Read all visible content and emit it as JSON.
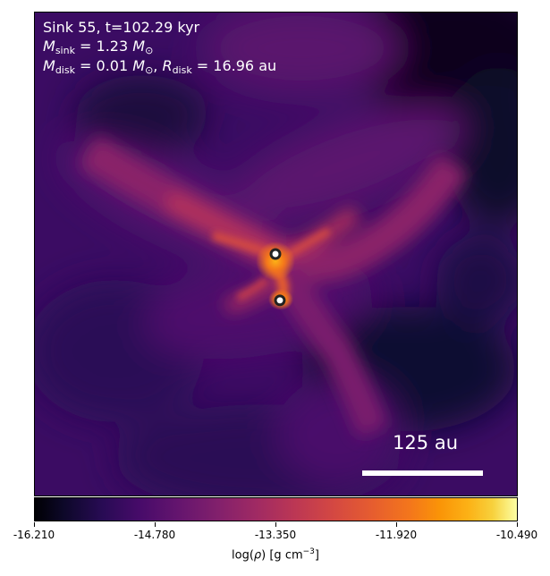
{
  "overlay": {
    "title": "Sink 55, t=102.29 kyr",
    "msink_symbol": "M",
    "msink_sub": "sink",
    "msink_value": " = 1.23 ",
    "msink_unit": "M",
    "msink_unit_sub": "⊙",
    "mdisk_symbol": "M",
    "mdisk_sub": "disk",
    "mdisk_value": " = 0.01 ",
    "mdisk_unit": "M",
    "mdisk_unit_sub": "⊙",
    "separator": ", ",
    "rdisk_symbol": "R",
    "rdisk_sub": "disk",
    "rdisk_value": " = 16.96 au"
  },
  "scale_bar": {
    "label": "125 au"
  },
  "colorbar": {
    "colormap": "inferno",
    "min": -16.21,
    "max": -10.49,
    "tick_labels": [
      "-16.210",
      "-14.780",
      "-13.350",
      "-11.920",
      "-10.490"
    ],
    "label_prefix": "log(",
    "label_symbol": "ρ",
    "label_suffix": ") [g cm",
    "label_exponent": "−3",
    "label_close": "]"
  },
  "colors": {
    "background_dark": "#000004",
    "filament": "#e8602a",
    "sink_marker_fill": "#ffffff",
    "sink_marker_edge": "#222222"
  }
}
